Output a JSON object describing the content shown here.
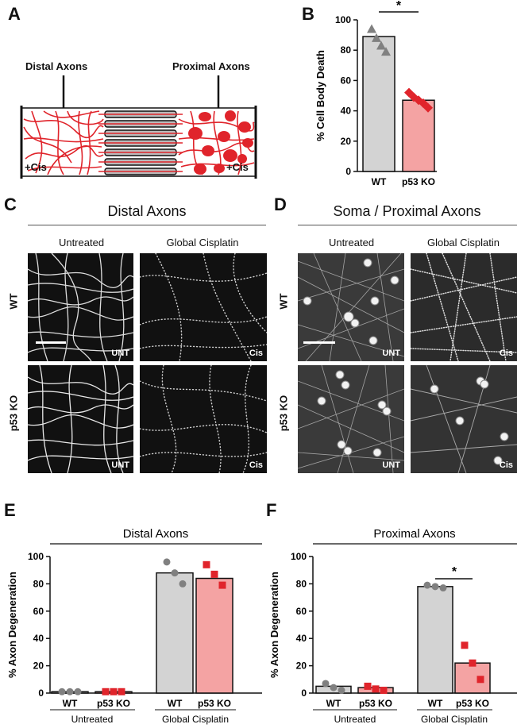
{
  "panels": {
    "A": {
      "letter": "A",
      "label_distal": "Distal Axons",
      "label_proximal": "Proximal Axons",
      "cis_left": "+Cis",
      "cis_right": "+Cis"
    },
    "B": {
      "letter": "B",
      "significance": "*"
    },
    "C": {
      "letter": "C",
      "title": "Distal Axons",
      "col_untreated": "Untreated",
      "col_cisplatin": "Global Cisplatin",
      "row_wt": "WT",
      "row_ko": "p53 KO",
      "tag_unt": "UNT",
      "tag_cis": "Cis"
    },
    "D": {
      "letter": "D",
      "title": "Soma / Proximal Axons",
      "col_untreated": "Untreated",
      "col_cisplatin": "Global Cisplatin",
      "row_wt": "WT",
      "row_ko": "p53 KO",
      "tag_unt": "UNT",
      "tag_cis": "Cis"
    },
    "E": {
      "letter": "E",
      "header": "Distal Axons"
    },
    "F": {
      "letter": "F",
      "header": "Proximal Axons",
      "significance": "*"
    }
  },
  "colors": {
    "wt": "#d3d3d3",
    "ko": "#f4a3a3",
    "red": "#e0242b",
    "grey_marker": "#808080"
  },
  "chart_data": [
    {
      "panel": "B",
      "type": "bar",
      "ylabel": "% Cell Body Death",
      "ylim": [
        0,
        100
      ],
      "yticks": [
        0,
        20,
        40,
        60,
        80,
        100
      ],
      "categories": [
        "WT",
        "p53 KO"
      ],
      "values": [
        89,
        47
      ],
      "points": [
        [
          94,
          88,
          83,
          79
        ],
        [
          52,
          49,
          47,
          45,
          42
        ]
      ],
      "markers": [
        "triangle",
        "diamond"
      ]
    },
    {
      "panel": "E",
      "type": "bar",
      "ylabel": "% Axon Degeneration",
      "ylim": [
        0,
        100
      ],
      "yticks": [
        0,
        20,
        40,
        60,
        80,
        100
      ],
      "categories": [
        "WT",
        "p53 KO",
        "WT",
        "p53 KO"
      ],
      "groups": [
        "Untreated",
        "Global Cisplatin"
      ],
      "values": [
        1,
        1,
        88,
        84
      ],
      "points": [
        [
          1,
          1,
          1
        ],
        [
          1,
          1,
          1
        ],
        [
          96,
          88,
          80
        ],
        [
          94,
          87,
          79
        ]
      ],
      "markers": [
        "circle",
        "square",
        "circle",
        "square"
      ]
    },
    {
      "panel": "F",
      "type": "bar",
      "ylabel": "% Axon Degeneration",
      "ylim": [
        0,
        100
      ],
      "yticks": [
        0,
        20,
        40,
        60,
        80,
        100
      ],
      "categories": [
        "WT",
        "p53 KO",
        "WT",
        "p53 KO"
      ],
      "groups": [
        "Untreated",
        "Global Cisplatin"
      ],
      "values": [
        5,
        4,
        78,
        22
      ],
      "points": [
        [
          7,
          4,
          2
        ],
        [
          5,
          3,
          2
        ],
        [
          79,
          78,
          77
        ],
        [
          35,
          22,
          10
        ]
      ],
      "markers": [
        "circle",
        "square",
        "circle",
        "square"
      ]
    }
  ]
}
